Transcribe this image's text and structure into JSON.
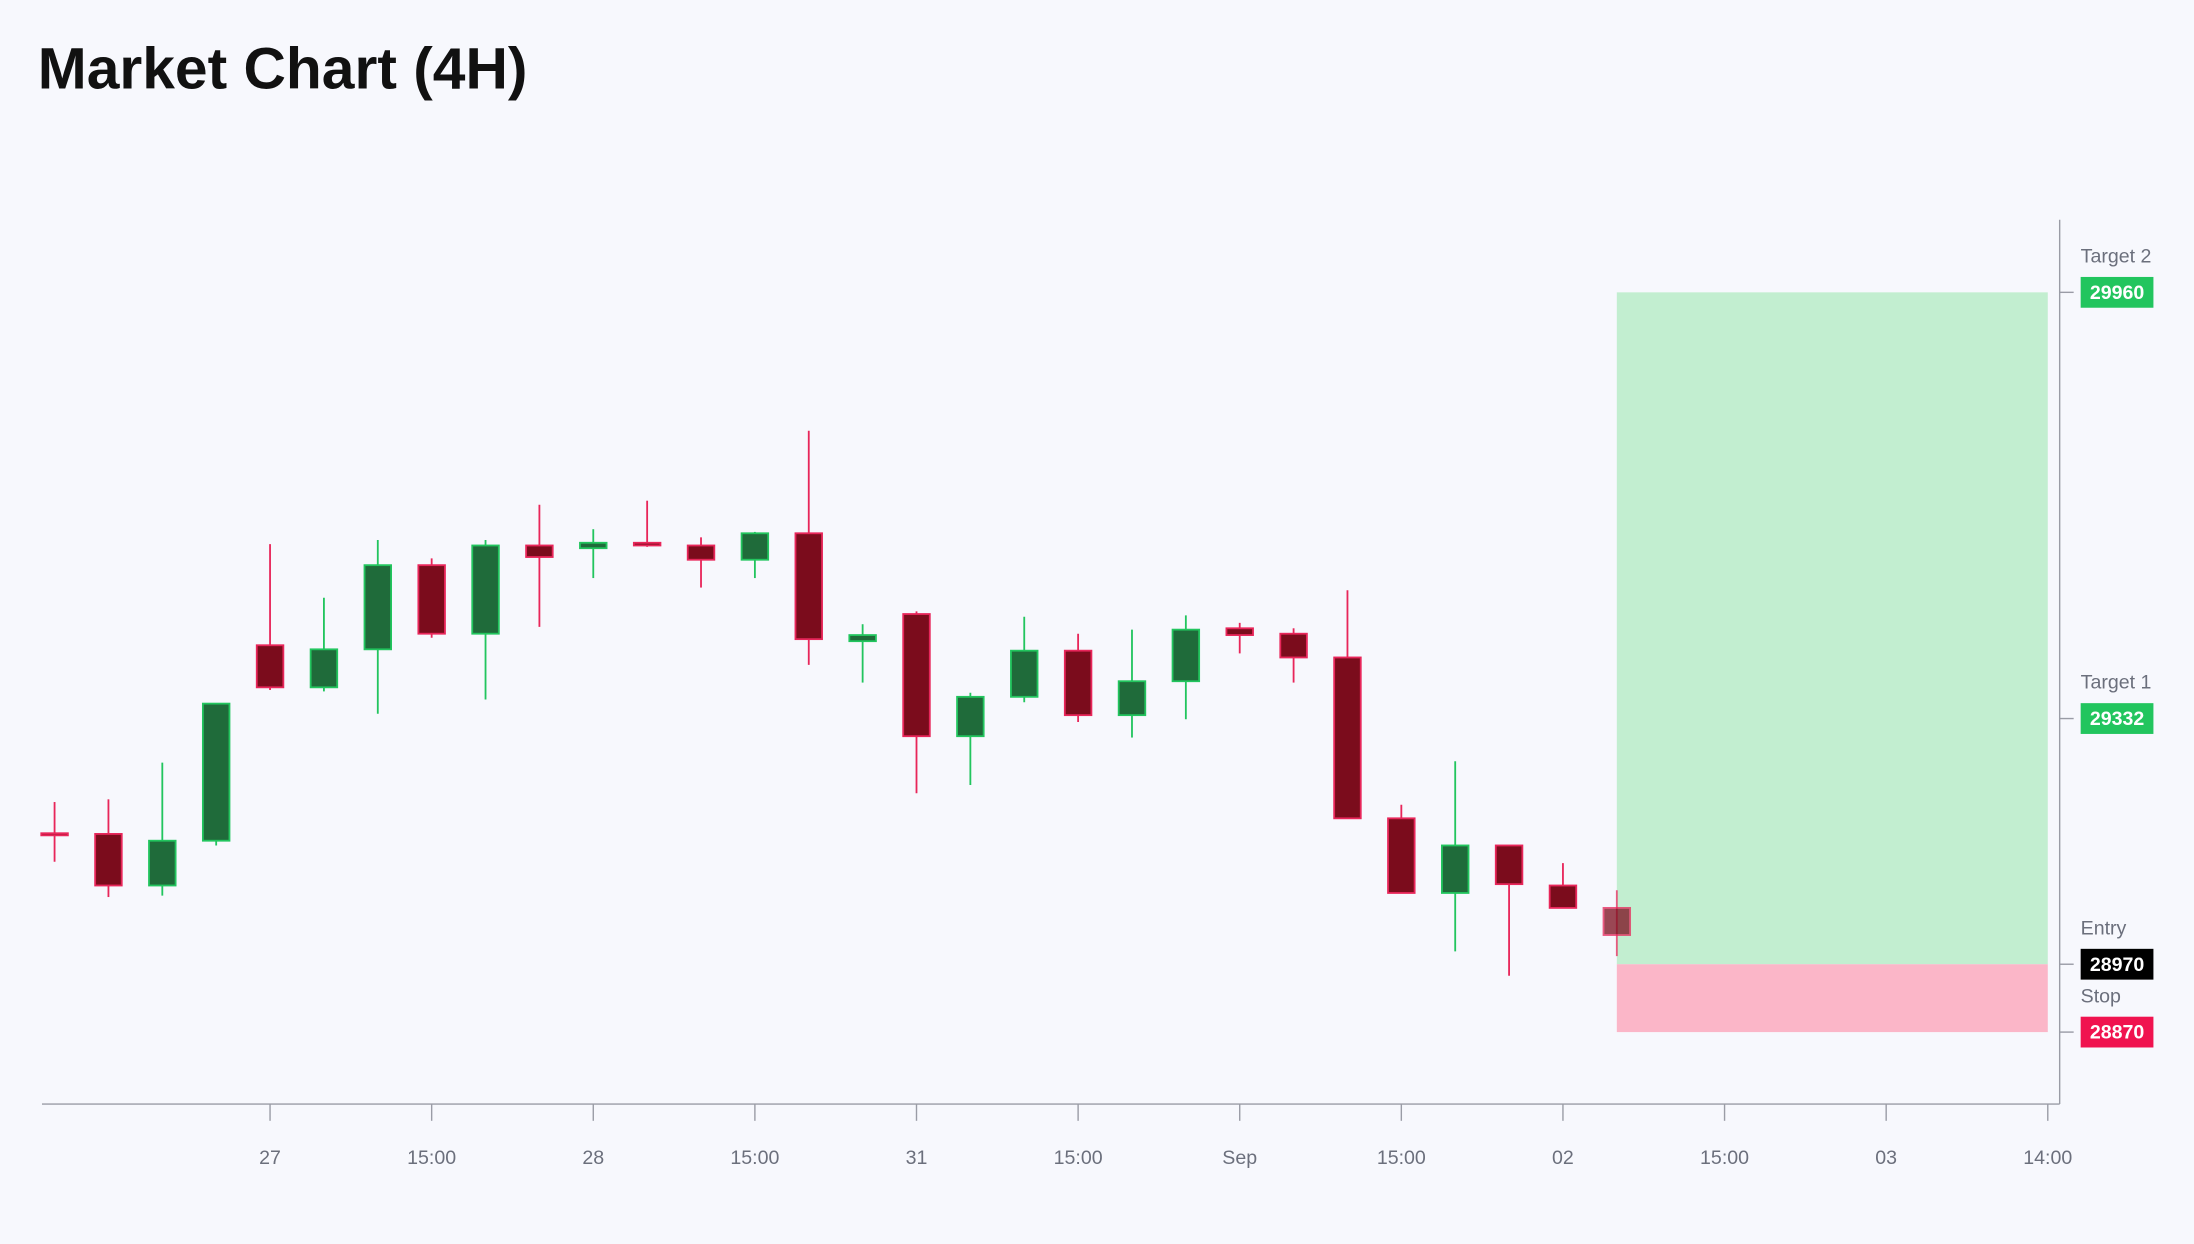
{
  "chart_data": {
    "type": "candlestick",
    "title": "Market Chart (4H)",
    "categories": [
      null,
      null,
      null,
      null,
      "27",
      null,
      null,
      "15:00",
      null,
      null,
      "28",
      null,
      null,
      "15:00",
      null,
      null,
      "31",
      null,
      null,
      "15:00",
      null,
      null,
      "Sep",
      null,
      null,
      "15:00",
      null,
      null,
      "02",
      null,
      null,
      "15:00",
      null,
      null,
      "03",
      null,
      null,
      "14:00"
    ],
    "open": [
      29163,
      29162,
      29086,
      29152,
      29440,
      29378,
      29434,
      29558,
      29457,
      29587,
      29583,
      29591,
      29587,
      29566,
      29605,
      29446,
      29486,
      29306,
      29364,
      29432,
      29337,
      29387,
      29465,
      29457,
      29422,
      29185,
      29075,
      29145,
      29086,
      29053,
      null,
      null,
      null,
      null,
      null,
      null,
      null,
      null
    ],
    "high": [
      29209,
      29213,
      29267,
      29354,
      29589,
      29510,
      29595,
      29568,
      29595,
      29647,
      29611,
      29653,
      29599,
      29607,
      29756,
      29471,
      29490,
      29370,
      29482,
      29457,
      29463,
      29484,
      29473,
      29465,
      29521,
      29205,
      29269,
      29145,
      29119,
      29079,
      null,
      null,
      null,
      null,
      null,
      null,
      null,
      null
    ],
    "low": [
      29121,
      29069,
      29071,
      29145,
      29374,
      29372,
      29339,
      29451,
      29360,
      29467,
      29539,
      29585,
      29525,
      29539,
      29411,
      29385,
      29222,
      29234,
      29356,
      29327,
      29304,
      29331,
      29428,
      29385,
      29185,
      29075,
      28989,
      28953,
      29053,
      28982,
      null,
      null,
      null,
      null,
      null,
      null,
      null,
      null
    ],
    "close": [
      29161,
      29086,
      29152,
      29354,
      29378,
      29434,
      29558,
      29457,
      29587,
      29570,
      29591,
      29587,
      29566,
      29605,
      29449,
      29455,
      29306,
      29364,
      29432,
      29337,
      29387,
      29463,
      29455,
      29422,
      29185,
      29075,
      29145,
      29088,
      29053,
      29013,
      null,
      null,
      null,
      null,
      null,
      null,
      null,
      null
    ],
    "up_color": "#1f6b3a",
    "up_border": "#22c55e",
    "down_color": "#7b0c1c",
    "down_border": "#e8265a",
    "ylim": [
      28764,
      30067
    ],
    "levels": [
      {
        "label": "Target 2",
        "value": 29960,
        "color": "#22c55e"
      },
      {
        "label": "Target 1",
        "value": 29332,
        "color": "#22c55e"
      },
      {
        "label": "Entry",
        "value": 28970,
        "color": "#000000"
      },
      {
        "label": "Stop",
        "value": 28870,
        "color": "#f0134f"
      }
    ],
    "profit_color": "#c2eed0",
    "loss_color": "#fbb6c8"
  }
}
